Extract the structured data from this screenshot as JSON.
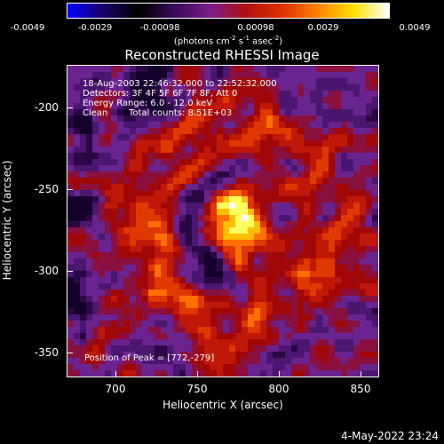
{
  "colorbar": {
    "min": -0.0049,
    "max": 0.0049,
    "tick_labels": [
      "-0.0049",
      "-0.0029",
      "-0.00098",
      "0.00098",
      "0.0029",
      "0.0049"
    ],
    "units_text": "(photons cm",
    "units_exp1": "-2",
    "units_mid1": " s",
    "units_exp2": "-1",
    "units_mid2": " asec",
    "units_exp3": "-2",
    "units_close": ")",
    "colormap": [
      "#0000ff",
      "#1a0066",
      "#000000",
      "#3a0a5a",
      "#7a1e8a",
      "#b01010",
      "#e03000",
      "#ff8000",
      "#ffe000",
      "#ffffff"
    ]
  },
  "title": "Reconstructed RHESSI Image",
  "info": {
    "time_range": "18-Aug-2003 22:46:32.000 to 22:52:32.000",
    "detectors": "Detectors: 3F 4F 5F 6F 7F 8F, Att 0",
    "energy": "Energy Range: 6.0 - 12.0 keV",
    "clean": "Clean",
    "total_counts": "Total counts: 8.51E+03",
    "peak": "Position of Peak = [772,-279]"
  },
  "axes": {
    "xlabel": "Heliocentric X (arcsec)",
    "ylabel": "Heliocentric Y (arcsec)",
    "xticks": [
      "700",
      "750",
      "800",
      "850"
    ],
    "yticks": [
      "-200",
      "-250",
      "-300",
      "-350"
    ],
    "xlim": [
      668,
      860
    ],
    "ylim": [
      -371,
      -179
    ]
  },
  "image": {
    "peak_x": 772,
    "peak_y": -279
  },
  "footer": {
    "date_stamp": "4-May-2022 23:24"
  }
}
